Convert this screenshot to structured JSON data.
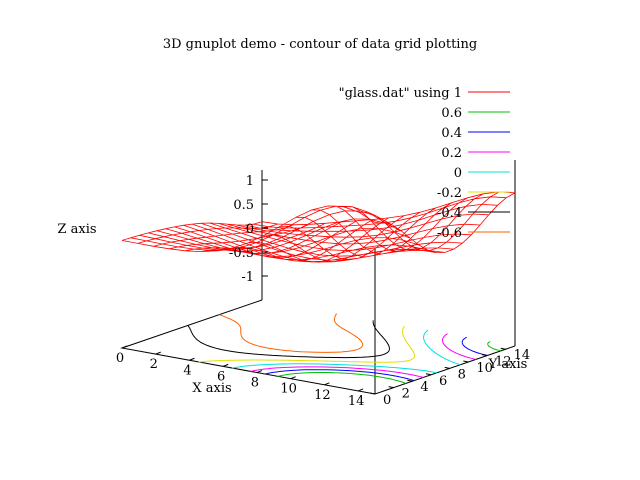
{
  "chart_data": {
    "type": "surface+contour",
    "title": "3D gnuplot demo - contour of data grid plotting",
    "xlabel": "X axis",
    "ylabel": "Y axis",
    "zlabel": "Z axis",
    "xlim": [
      0,
      15
    ],
    "ylim": [
      0,
      15
    ],
    "zlim": [
      -1,
      1
    ],
    "x_ticks": [
      "0",
      "2",
      "4",
      "6",
      "8",
      "10",
      "12",
      "14"
    ],
    "y_ticks": [
      "0",
      "2",
      "4",
      "6",
      "8",
      "10",
      "12",
      "14"
    ],
    "z_ticks": [
      "1",
      "0.5",
      "0",
      "-0.5",
      "-1"
    ],
    "surface": {
      "name": "\"glass.dat\" using 1",
      "color": "#ff0000"
    },
    "legend_position": "top-right",
    "contour_levels": [
      {
        "label": "0.6",
        "value": 0.6,
        "color": "#00c000"
      },
      {
        "label": "0.4",
        "value": 0.4,
        "color": "#0000ff"
      },
      {
        "label": "0.2",
        "value": 0.2,
        "color": "#ff00ff"
      },
      {
        "label": "0",
        "value": 0,
        "color": "#00e0e0"
      },
      {
        "label": "-0.2",
        "value": -0.2,
        "color": "#e0e000"
      },
      {
        "label": "-0.4",
        "value": -0.4,
        "color": "#000000"
      },
      {
        "label": "-0.6",
        "value": -0.6,
        "color": "#ff6000"
      }
    ]
  }
}
